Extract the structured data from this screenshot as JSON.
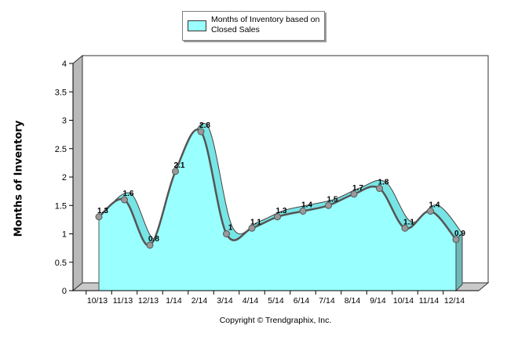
{
  "chart_data": {
    "type": "area",
    "categories": [
      "10/13",
      "11/13",
      "12/13",
      "1/14",
      "2/14",
      "3/14",
      "4/14",
      "5/14",
      "6/14",
      "7/14",
      "8/14",
      "9/14",
      "10/14",
      "11/14",
      "12/14"
    ],
    "series": [
      {
        "name": "Months of Inventory based on Closed Sales",
        "values": [
          1.3,
          1.6,
          0.8,
          2.1,
          2.8,
          1,
          1.1,
          1.3,
          1.4,
          1.5,
          1.7,
          1.8,
          1.1,
          1.4,
          0.9
        ],
        "labels": [
          "1.3",
          "1.6",
          "0.8",
          "2.1",
          "2.8",
          "1",
          "1.1",
          "1.3",
          "1.4",
          "1.5",
          "1.7",
          "1.8",
          "1.1",
          "1.4",
          "0.9"
        ]
      }
    ],
    "title": "",
    "xlabel": "",
    "ylabel": "Months of Inventory",
    "ylim": [
      0,
      4
    ],
    "yticks": [
      "0",
      "0.5",
      "1",
      "1.5",
      "2",
      "2.5",
      "3",
      "3.5",
      "4"
    ],
    "grid": false,
    "legend": "top-center",
    "fill_color": "#99ffff",
    "line_color": "#555555"
  },
  "legend": {
    "label": "Months of Inventory based on Closed Sales"
  },
  "footer": {
    "copyright": "Copyright © Trendgraphix, Inc."
  }
}
